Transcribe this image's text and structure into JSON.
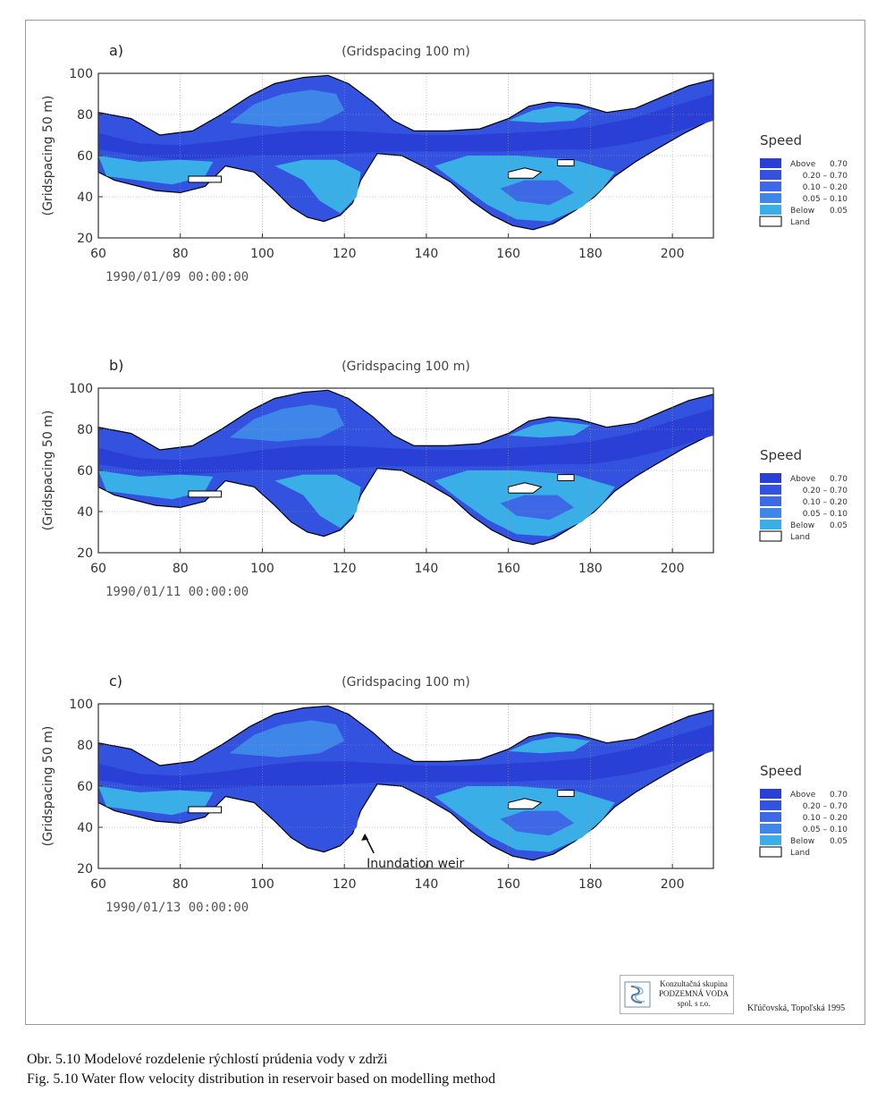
{
  "chart_data": [
    {
      "type": "heatmap",
      "panel_label": "a)",
      "title": "(Gridspacing 100 m)",
      "ylabel": "(Gridspacing 50 m)",
      "timestamp": "1990/01/09 00:00:00",
      "xlim": [
        60,
        210
      ],
      "ylim": [
        20,
        100
      ],
      "x_ticks": [
        60,
        80,
        100,
        120,
        140,
        160,
        180,
        200
      ],
      "y_ticks": [
        20,
        40,
        60,
        80,
        100
      ],
      "grid": true,
      "annotation": null,
      "legend": {
        "title": "Speed",
        "placement": "right",
        "entries": [
          {
            "label": "Above",
            "value": "0.70",
            "color": "#2a3fd6"
          },
          {
            "label": "",
            "value": "0.20 – 0.70",
            "color": "#3452e0"
          },
          {
            "label": "",
            "value": "0.10 – 0.20",
            "color": "#3d68e6"
          },
          {
            "label": "",
            "value": "0.05 – 0.10",
            "color": "#3e86e8"
          },
          {
            "label": "Below",
            "value": "0.05",
            "color": "#3aaee6"
          },
          {
            "label": "Land",
            "value": "",
            "color": "#ffffff"
          }
        ]
      }
    },
    {
      "type": "heatmap",
      "panel_label": "b)",
      "title": "(Gridspacing 100 m)",
      "ylabel": "(Gridspacing 50 m)",
      "timestamp": "1990/01/11 00:00:00",
      "xlim": [
        60,
        210
      ],
      "ylim": [
        20,
        100
      ],
      "x_ticks": [
        60,
        80,
        100,
        120,
        140,
        160,
        180,
        200
      ],
      "y_ticks": [
        20,
        40,
        60,
        80,
        100
      ],
      "grid": true,
      "annotation": null,
      "legend": {
        "title": "Speed",
        "placement": "right",
        "entries": [
          {
            "label": "Above",
            "value": "0.70",
            "color": "#2a3fd6"
          },
          {
            "label": "",
            "value": "0.20 – 0.70",
            "color": "#3452e0"
          },
          {
            "label": "",
            "value": "0.10 – 0.20",
            "color": "#3d68e6"
          },
          {
            "label": "",
            "value": "0.05 – 0.10",
            "color": "#3e86e8"
          },
          {
            "label": "Below",
            "value": "0.05",
            "color": "#3aaee6"
          },
          {
            "label": "Land",
            "value": "",
            "color": "#ffffff"
          }
        ]
      }
    },
    {
      "type": "heatmap",
      "panel_label": "c)",
      "title": "(Gridspacing 100 m)",
      "ylabel": "(Gridspacing 50 m)",
      "timestamp": "1990/01/13 00:00:00",
      "xlim": [
        60,
        210
      ],
      "ylim": [
        20,
        100
      ],
      "x_ticks": [
        60,
        80,
        100,
        120,
        140,
        160,
        180,
        200
      ],
      "y_ticks": [
        20,
        40,
        60,
        80,
        100
      ],
      "grid": true,
      "annotation": {
        "text": "Inundation weir",
        "x": 125,
        "y": 37
      },
      "legend": {
        "title": "Speed",
        "placement": "right",
        "entries": [
          {
            "label": "Above",
            "value": "0.70",
            "color": "#2a3fd6"
          },
          {
            "label": "",
            "value": "0.20 – 0.70",
            "color": "#3452e0"
          },
          {
            "label": "",
            "value": "0.10 – 0.20",
            "color": "#3d68e6"
          },
          {
            "label": "",
            "value": "0.05 – 0.10",
            "color": "#3e86e8"
          },
          {
            "label": "Below",
            "value": "0.05",
            "color": "#3aaee6"
          },
          {
            "label": "Land",
            "value": "",
            "color": "#ffffff"
          }
        ]
      }
    }
  ],
  "logo": {
    "line1": "Konzultačná skupina",
    "line2": "PODZEMNÁ VODA",
    "line3": "spol. s r.o.",
    "icon": "wave-logo-icon"
  },
  "authors": "Kľúčovská, Topoľská 1995",
  "caption": {
    "line_sk": "Obr. 5.10  Modelové rozdelenie rýchlostí prúdenia vody v zdrži",
    "line_en": "Fig. 5.10  Water flow velocity distribution in reservoir based on modelling method"
  },
  "colors": {
    "frame": "#9a9a9a",
    "axis": "#333333",
    "grid": "#999999"
  }
}
